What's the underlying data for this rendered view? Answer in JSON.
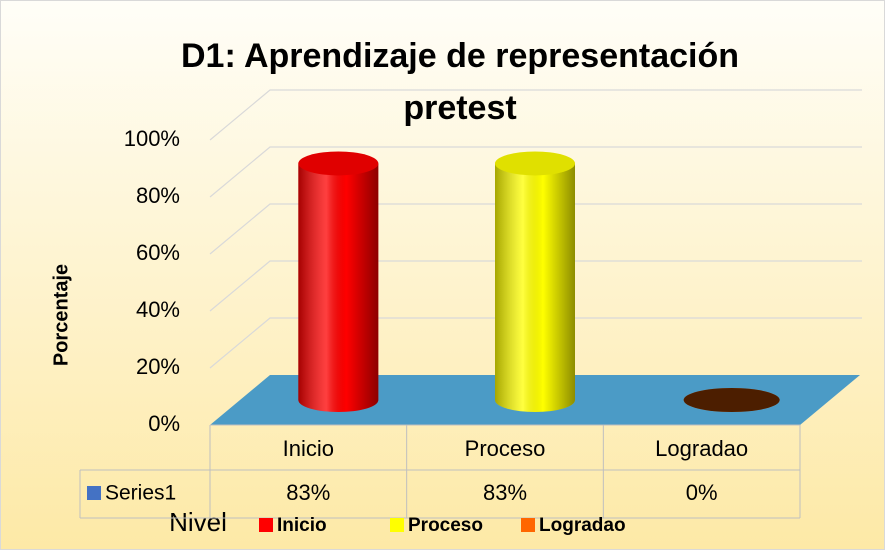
{
  "chart_data": {
    "type": "bar3d",
    "title": "D1: Aprendizaje de representación pretest",
    "y_label": "Porcentaje",
    "x_label": "Nivel",
    "categories": [
      "Inicio",
      "Proceso",
      "Logradao"
    ],
    "series": [
      {
        "name": "Series1",
        "color": "#4472c4",
        "point_colors": [
          "#ff0000",
          "#ffff00",
          "#ff6600"
        ],
        "values": [
          83,
          83,
          0
        ],
        "value_labels": [
          "83%",
          "83%",
          "0%"
        ]
      }
    ],
    "ylim": [
      0,
      100
    ],
    "yticks": [
      {
        "value": 0,
        "label": "0%"
      },
      {
        "value": 20,
        "label": "20%"
      },
      {
        "value": 40,
        "label": "40%"
      },
      {
        "value": 60,
        "label": "60%"
      },
      {
        "value": 80,
        "label": "80%"
      },
      {
        "value": 100,
        "label": "100%"
      }
    ],
    "grid": true,
    "floor_color": "#4b9bc6"
  }
}
